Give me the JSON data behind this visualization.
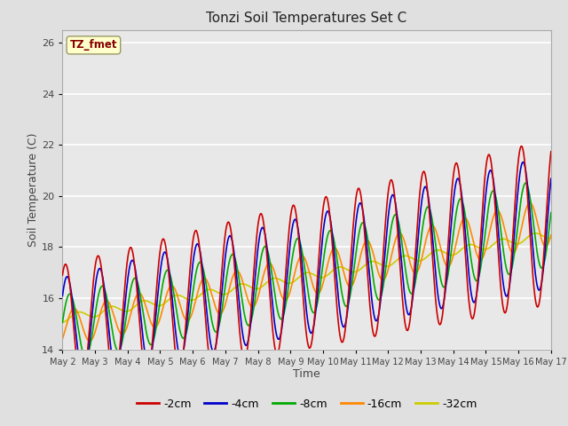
{
  "title": "Tonzi Soil Temperatures Set C",
  "xlabel": "Time",
  "ylabel": "Soil Temperature (C)",
  "ylim": [
    14,
    26.5
  ],
  "yticks": [
    14,
    16,
    18,
    20,
    22,
    24,
    26
  ],
  "x_tick_labels": [
    "May 2",
    "May 3",
    "May 4",
    "May 5",
    "May 6",
    "May 7",
    "May 8",
    "May 9",
    "May 10",
    "May 11",
    "May 12",
    "May 13",
    "May 14",
    "May 15",
    "May 16",
    "May 17"
  ],
  "bg_color": "#e0e0e0",
  "plot_bg_color": "#e8e8e8",
  "grid_color": "#ffffff",
  "lines": {
    "-2cm": {
      "color": "#cc0000",
      "lw": 1.2
    },
    "-4cm": {
      "color": "#0000cc",
      "lw": 1.2
    },
    "-8cm": {
      "color": "#00aa00",
      "lw": 1.2
    },
    "-16cm": {
      "color": "#ff8800",
      "lw": 1.2
    },
    "-32cm": {
      "color": "#cccc00",
      "lw": 1.2
    }
  },
  "legend_label": "TZ_fmet",
  "legend_bg": "#ffffcc",
  "legend_text_color": "#880000"
}
